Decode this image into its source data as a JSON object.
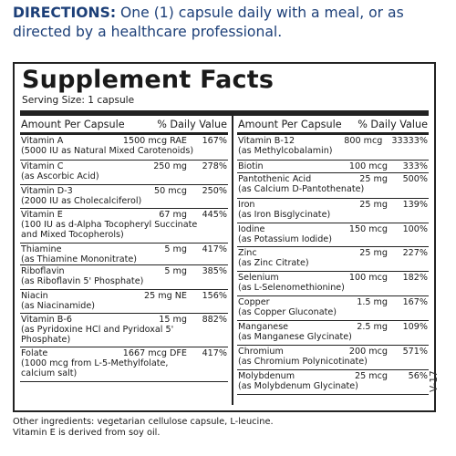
{
  "directions": {
    "label": "DIRECTIONS:",
    "text": " One (1) capsule daily with a meal, or as directed by a healthcare professional."
  },
  "facts": {
    "title": "Supplement Facts",
    "serving": "Serving Size: 1 capsule",
    "header_amount": "Amount Per Capsule",
    "header_dv": "% Daily Value",
    "left": [
      {
        "name": "Vitamin A",
        "amount": "1500 mcg RAE",
        "dv": "167%",
        "sub": [
          "(5000 IU as Natural Mixed Carotenoids)"
        ],
        "h": 28
      },
      {
        "name": "Vitamin C",
        "amount": "250 mg",
        "dv": "278%",
        "sub": [
          "(as Ascorbic Acid)"
        ],
        "h": 27
      },
      {
        "name": "Vitamin D-3",
        "amount": "50 mcg",
        "dv": "250%",
        "sub": [
          "(2000 IU as Cholecalciferol)"
        ],
        "h": 26
      },
      {
        "name": "Vitamin E",
        "amount": "67 mg",
        "dv": "445%",
        "sub": [
          "(100 IU as d-Alpha Tocopheryl Succinate",
          "and Mixed Tocopherols)"
        ],
        "h": 38
      },
      {
        "name": "Thiamine",
        "amount": "5 mg",
        "dv": "417%",
        "sub": [
          "(as Thiamine Mononitrate)"
        ],
        "h": 24
      },
      {
        "name": "Riboflavin",
        "amount": "5 mg",
        "dv": "385%",
        "sub": [
          "(as Riboflavin 5' Phosphate)"
        ],
        "h": 27
      },
      {
        "name": "Niacin",
        "amount": "25 mg NE",
        "dv": "156%",
        "sub": [
          "(as Niacinamide)"
        ],
        "h": 26
      },
      {
        "name": "Vitamin B-6",
        "amount": "15 mg",
        "dv": "882%",
        "sub": [
          "(as Pyridoxine HCl and Pyridoxal 5'",
          "Phosphate)"
        ],
        "h": 37
      },
      {
        "name": "Folate",
        "amount": "1667 mcg DFE",
        "dv": "417%",
        "sub": [
          "(1000 mcg from L-5-Methylfolate,",
          "calcium salt)"
        ],
        "h": 38
      }
    ],
    "right": [
      {
        "name": "Vitamin B-12",
        "amount": "800 mcg",
        "dv": "33333%",
        "sub": [
          "(as Methylcobalamin)"
        ],
        "h": 28
      },
      {
        "name": "Biotin",
        "amount": "100 mcg",
        "dv": "333%",
        "sub": [],
        "h": 14
      },
      {
        "name": "Pantothenic Acid",
        "amount": "25 mg",
        "dv": "500%",
        "sub": [
          "(as Calcium D-Pantothenate)"
        ],
        "h": 28
      },
      {
        "name": "Iron",
        "amount": "25 mg",
        "dv": "139%",
        "sub": [
          "(as Iron Bisglycinate)"
        ],
        "h": 27
      },
      {
        "name": "Iodine",
        "amount": "150 mcg",
        "dv": "100%",
        "sub": [
          "(as Potassium Iodide)"
        ],
        "h": 26
      },
      {
        "name": "Zinc",
        "amount": "25 mg",
        "dv": "227%",
        "sub": [
          "(as Zinc Citrate)"
        ],
        "h": 27
      },
      {
        "name": "Selenium",
        "amount": "100 mcg",
        "dv": "182%",
        "sub": [
          "(as L-Selenomethionine)"
        ],
        "h": 27
      },
      {
        "name": "Copper",
        "amount": "1.5 mg",
        "dv": "167%",
        "sub": [
          "(as Copper Gluconate)"
        ],
        "h": 27
      },
      {
        "name": "Manganese",
        "amount": "2.5 mg",
        "dv": "109%",
        "sub": [
          "(as Manganese Glycinate)"
        ],
        "h": 27
      },
      {
        "name": "Chromium",
        "amount": "200 mcg",
        "dv": "571%",
        "sub": [
          "(as Chromium Polynicotinate)"
        ],
        "h": 27
      },
      {
        "name": "Molybdenum",
        "amount": "25 mcg",
        "dv": "56%",
        "sub": [
          "(as Molybdenum Glycinate)"
        ],
        "h": 27
      }
    ]
  },
  "version": "V-17",
  "other": {
    "line1": "Other ingredients: vegetarian cellulose capsule, L-leucine.",
    "line2": "Vitamin E is derived from soy oil."
  }
}
